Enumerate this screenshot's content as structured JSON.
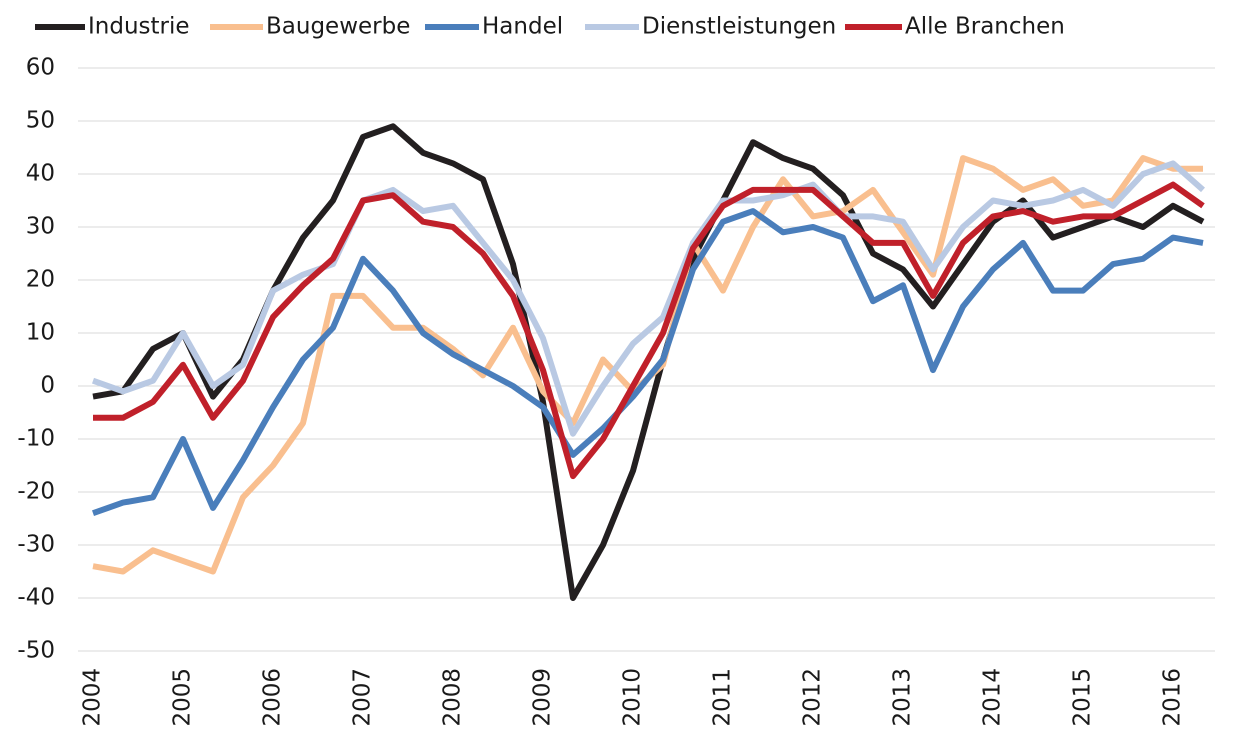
{
  "chart_data": {
    "type": "line",
    "categories": [
      "2004",
      null,
      null,
      "2005",
      null,
      null,
      "2006",
      null,
      null,
      "2007",
      null,
      null,
      "2008",
      null,
      null,
      "2009",
      null,
      null,
      "2010",
      null,
      null,
      "2011",
      null,
      null,
      "2012",
      null,
      null,
      "2013",
      null,
      null,
      "2014",
      null,
      null,
      "2015",
      null,
      null,
      "2016",
      null
    ],
    "series": [
      {
        "name": "Industrie",
        "color": "#231f20",
        "values": [
          -2,
          -1,
          7,
          10,
          -2,
          5,
          18,
          28,
          35,
          47,
          49,
          44,
          42,
          39,
          23,
          -3,
          -40,
          -30,
          -16,
          5,
          24,
          35,
          46,
          43,
          41,
          36,
          25,
          22,
          15,
          23,
          31,
          35,
          28,
          30,
          32,
          30,
          34,
          31
        ]
      },
      {
        "name": "Baugewerbe",
        "color": "#f9bf8f",
        "values": [
          -34,
          -35,
          -31,
          -33,
          -35,
          -21,
          -15,
          -7,
          17,
          17,
          11,
          11,
          7,
          2,
          11,
          -1,
          -7,
          5,
          -1,
          4,
          27,
          18,
          30,
          39,
          32,
          33,
          37,
          29,
          21,
          43,
          41,
          37,
          39,
          34,
          35,
          43,
          41,
          41
        ]
      },
      {
        "name": "Handel",
        "color": "#4a7ebb",
        "values": [
          -24,
          -22,
          -21,
          -10,
          -23,
          -14,
          -4,
          5,
          11,
          24,
          18,
          10,
          6,
          3,
          0,
          -4,
          -13,
          -8,
          -2,
          5,
          22,
          31,
          33,
          29,
          30,
          28,
          16,
          19,
          3,
          15,
          22,
          27,
          18,
          18,
          23,
          24,
          28,
          27
        ]
      },
      {
        "name": "Dienstleistungen",
        "color": "#b9c9e3",
        "values": [
          1,
          -1,
          1,
          10,
          0,
          4,
          18,
          21,
          23,
          35,
          37,
          33,
          34,
          27,
          20,
          9,
          -9,
          0,
          8,
          13,
          27,
          35,
          35,
          36,
          38,
          32,
          32,
          31,
          22,
          30,
          35,
          34,
          35,
          37,
          34,
          40,
          42,
          37
        ]
      },
      {
        "name": "Alle Branchen",
        "color": "#c0202a",
        "values": [
          -6,
          -6,
          -3,
          4,
          -6,
          1,
          13,
          19,
          24,
          35,
          36,
          31,
          30,
          25,
          17,
          3,
          -17,
          -10,
          0,
          10,
          26,
          34,
          37,
          37,
          37,
          32,
          27,
          27,
          17,
          27,
          32,
          33,
          31,
          32,
          32,
          35,
          38,
          34
        ]
      }
    ],
    "ylim": [
      -50,
      60
    ],
    "yticks": [
      -50,
      -40,
      -30,
      -20,
      -10,
      0,
      10,
      20,
      30,
      40,
      50,
      60
    ],
    "grid": true,
    "legend": "top"
  }
}
